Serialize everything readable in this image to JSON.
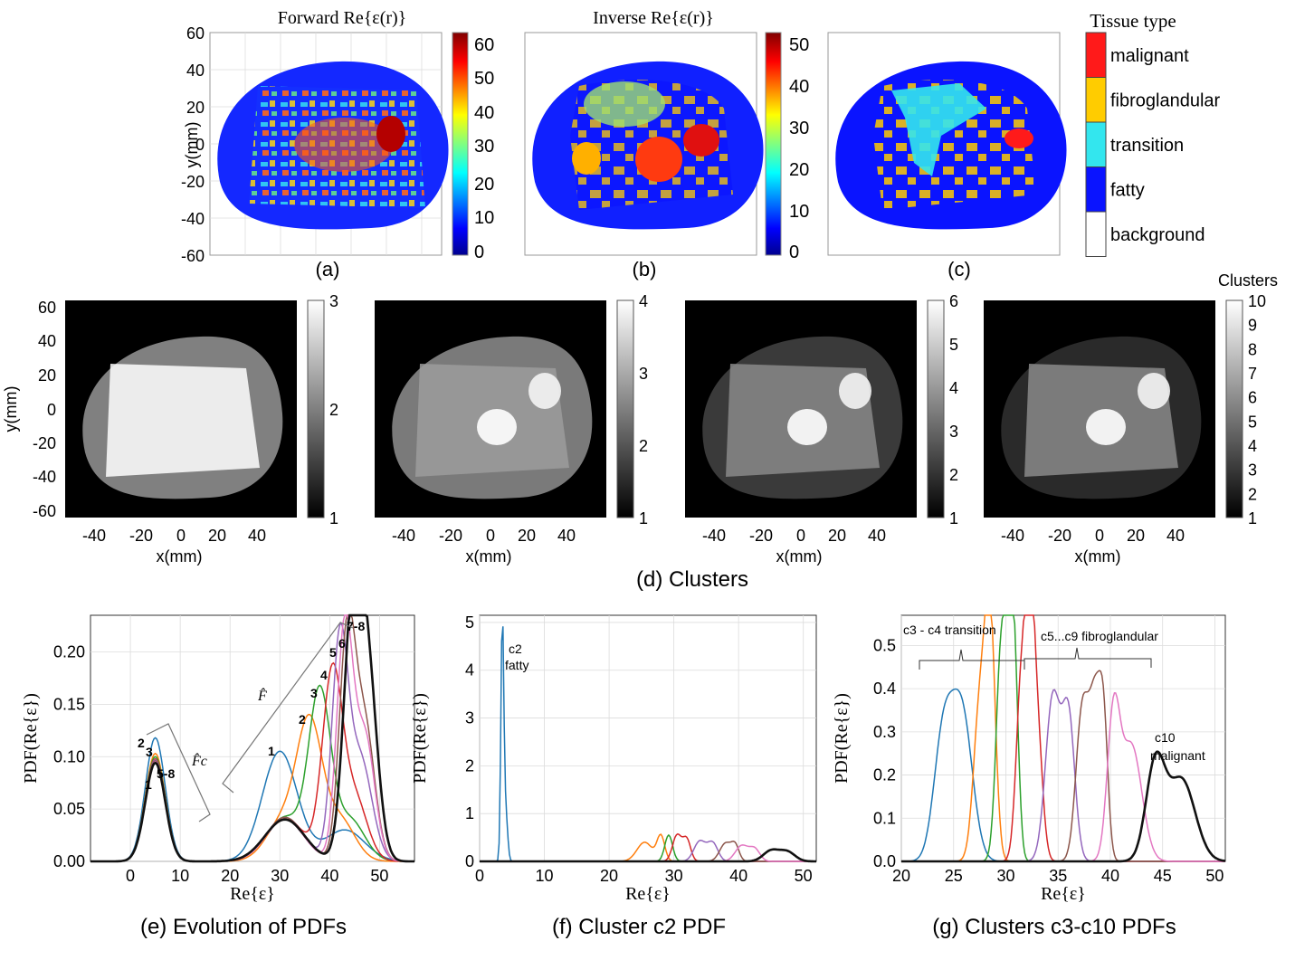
{
  "panels": {
    "a": {
      "title": "Forward Re{ε(r)}",
      "caption": "(a)",
      "ylabel": "y(mm)",
      "yticks": [
        "60",
        "40",
        "20",
        "0",
        "-20",
        "-40",
        "-60"
      ],
      "colorbar_ticks": [
        "60",
        "50",
        "40",
        "30",
        "20",
        "10",
        "0"
      ]
    },
    "b": {
      "title": "Inverse Re{ε(r)}",
      "caption": "(b)",
      "colorbar_ticks": [
        "50",
        "40",
        "30",
        "20",
        "10",
        "0"
      ]
    },
    "c": {
      "caption": "(c)",
      "legend_title": "Tissue type",
      "legend": [
        {
          "label": "malignant",
          "color": "#ff1a1a"
        },
        {
          "label": "fibroglandular",
          "color": "#ffcc00"
        },
        {
          "label": "transition",
          "color": "#33e6ee"
        },
        {
          "label": "fatty",
          "color": "#0a14ff"
        },
        {
          "label": "background",
          "color": "#ffffff"
        }
      ]
    },
    "d": {
      "caption": "(d) Clusters",
      "ylabel": "y(mm)",
      "xlabel": "x(mm)",
      "yticks": [
        "60",
        "40",
        "20",
        "0",
        "-20",
        "-40",
        "-60"
      ],
      "xticks": [
        "-40",
        "-20",
        "0",
        "20",
        "40"
      ],
      "colorbar_label": "Clusters",
      "colorbars": [
        [
          "3",
          "2",
          "1"
        ],
        [
          "4",
          "3",
          "2",
          "1"
        ],
        [
          "6",
          "5",
          "4",
          "3",
          "2",
          "1"
        ],
        [
          "10",
          "9",
          "8",
          "7",
          "6",
          "5",
          "4",
          "3",
          "2",
          "1"
        ]
      ]
    }
  },
  "chart_data": [
    {
      "type": "line",
      "caption": "(e) Evolution of PDFs",
      "xlabel": "Re{ε}",
      "ylabel": "PDF(Re{ε})",
      "xlim": [
        -8,
        57
      ],
      "ylim": [
        0,
        0.235
      ],
      "xticks": [
        0,
        10,
        20,
        30,
        40,
        50
      ],
      "yticks": [
        0.0,
        0.05,
        0.1,
        0.15,
        0.2
      ],
      "ytick_labels": [
        "0.00",
        "0.05",
        "0.10",
        "0.15",
        "0.20"
      ],
      "grid": true,
      "annotations": [
        "2",
        "3",
        "5-8",
        "1",
        "F̂c",
        "F̂",
        "1",
        "2",
        "3",
        "4",
        "5",
        "6",
        "7-8"
      ],
      "series": [
        {
          "color": "#1f77b4",
          "peaks": [
            [
              5,
              0.118,
              2.0
            ],
            [
              30,
              0.105,
              3.5
            ],
            [
              43,
              0.03,
              4
            ]
          ]
        },
        {
          "color": "#ff7f0e",
          "peaks": [
            [
              5,
              0.103,
              2.0
            ],
            [
              31,
              0.041,
              3.5
            ],
            [
              36,
              0.12,
              2.5
            ],
            [
              42,
              0.04,
              3
            ]
          ]
        },
        {
          "color": "#2ca02c",
          "peaks": [
            [
              5,
              0.1,
              2.0
            ],
            [
              31,
              0.042,
              3.8
            ],
            [
              38,
              0.155,
              2.2
            ],
            [
              44,
              0.04,
              3
            ]
          ]
        },
        {
          "color": "#d62728",
          "peaks": [
            [
              5,
              0.098,
              2.0
            ],
            [
              31,
              0.042,
              3.8
            ],
            [
              40.5,
              0.175,
              2
            ],
            [
              45,
              0.06,
              2.5
            ]
          ]
        },
        {
          "color": "#9467bd",
          "peaks": [
            [
              5,
              0.097,
              2.0
            ],
            [
              31,
              0.042,
              3.8
            ],
            [
              42,
              0.2,
              1.6
            ],
            [
              46,
              0.1,
              2.4
            ]
          ]
        },
        {
          "color": "#8c564b",
          "peaks": [
            [
              5,
              0.096,
              2.0
            ],
            [
              31,
              0.042,
              3.8
            ],
            [
              43.5,
              0.21,
              1.6
            ],
            [
              47,
              0.13,
              2
            ]
          ]
        },
        {
          "color": "#e377c2",
          "peaks": [
            [
              5,
              0.095,
              2.0
            ],
            [
              31,
              0.04,
              3.8
            ],
            [
              43,
              0.22,
              1.6
            ],
            [
              47,
              0.12,
              2
            ]
          ]
        },
        {
          "color": "#111111",
          "peaks": [
            [
              5,
              0.094,
              2.0
            ],
            [
              31,
              0.04,
              4.0
            ],
            [
              44.5,
              0.215,
              1.8
            ],
            [
              47.5,
              0.18,
              2
            ]
          ]
        }
      ]
    },
    {
      "type": "line",
      "caption": "(f) Cluster c2 PDF",
      "xlabel": "Re{ε}",
      "ylabel": "PDF(Re{ε})",
      "xlim": [
        0,
        52
      ],
      "ylim": [
        0,
        5.15
      ],
      "xticks": [
        0,
        10,
        20,
        30,
        40,
        50
      ],
      "yticks": [
        0,
        1,
        2,
        3,
        4,
        5
      ],
      "grid": true,
      "annotations": [
        "c2",
        "fatty"
      ],
      "series": [
        {
          "color": "#1f77b4",
          "peaks": [
            [
              3.5,
              4.95,
              0.22
            ],
            [
              4.0,
              1.1,
              0.3
            ]
          ]
        },
        {
          "color": "#ff7f0e",
          "peaks": [
            [
              25.5,
              0.4,
              1.2
            ],
            [
              28,
              0.52,
              0.6
            ]
          ]
        },
        {
          "color": "#2ca02c",
          "peaks": [
            [
              29.2,
              0.55,
              0.6
            ]
          ]
        },
        {
          "color": "#d62728",
          "peaks": [
            [
              30.5,
              0.55,
              0.7
            ],
            [
              32,
              0.45,
              0.6
            ]
          ]
        },
        {
          "color": "#9467bd",
          "peaks": [
            [
              34,
              0.42,
              0.9
            ],
            [
              36,
              0.38,
              0.8
            ]
          ]
        },
        {
          "color": "#8c564b",
          "peaks": [
            [
              38,
              0.38,
              0.9
            ],
            [
              39.5,
              0.3,
              0.6
            ]
          ]
        },
        {
          "color": "#e377c2",
          "peaks": [
            [
              40.5,
              0.33,
              1
            ],
            [
              42.5,
              0.25,
              0.8
            ]
          ]
        },
        {
          "color": "#111111",
          "peaks": [
            [
              45,
              0.22,
              1.2
            ],
            [
              47.5,
              0.2,
              1.2
            ]
          ]
        }
      ]
    },
    {
      "type": "line",
      "caption": "(g) Clusters c3-c10 PDFs",
      "xlabel": "Re{ε}",
      "ylabel": "PDF(Re{ε})",
      "xlim": [
        20,
        51
      ],
      "ylim": [
        0,
        0.57
      ],
      "xticks": [
        20,
        25,
        30,
        35,
        40,
        45,
        50
      ],
      "yticks": [
        0.0,
        0.1,
        0.2,
        0.3,
        0.4,
        0.5
      ],
      "ytick_labels": [
        "0.0",
        "0.1",
        "0.2",
        "0.3",
        "0.4",
        "0.5"
      ],
      "grid": true,
      "annotations": [
        "c3 - c4 transition",
        "c5...c9 fibroglandular",
        "c10",
        "malignant"
      ],
      "series": [
        {
          "color": "#1f77b4",
          "peaks": [
            [
              24,
              0.28,
              0.9
            ],
            [
              25.8,
              0.34,
              1.0
            ]
          ]
        },
        {
          "color": "#ff7f0e",
          "peaks": [
            [
              27.5,
              0.35,
              0.6
            ],
            [
              28.5,
              0.54,
              0.5
            ]
          ]
        },
        {
          "color": "#2ca02c",
          "peaks": [
            [
              29.6,
              0.52,
              0.5
            ],
            [
              30.8,
              0.46,
              0.4
            ],
            [
              30.3,
              0.38,
              0.3
            ]
          ]
        },
        {
          "color": "#d62728",
          "peaks": [
            [
              31.5,
              0.42,
              0.5
            ],
            [
              32.3,
              0.5,
              0.4
            ],
            [
              33,
              0.3,
              0.5
            ]
          ]
        },
        {
          "color": "#9467bd",
          "peaks": [
            [
              34.5,
              0.38,
              0.7
            ],
            [
              36,
              0.33,
              0.6
            ]
          ]
        },
        {
          "color": "#8c564b",
          "peaks": [
            [
              37.3,
              0.34,
              0.6
            ],
            [
              38.6,
              0.37,
              0.6
            ],
            [
              39.4,
              0.23,
              0.4
            ]
          ]
        },
        {
          "color": "#e377c2",
          "peaks": [
            [
              40.3,
              0.32,
              0.6
            ],
            [
              42,
              0.27,
              1.0
            ]
          ]
        },
        {
          "color": "#111111",
          "peaks": [
            [
              44.3,
              0.22,
              0.9
            ],
            [
              46.8,
              0.19,
              1.3
            ]
          ]
        }
      ]
    }
  ]
}
